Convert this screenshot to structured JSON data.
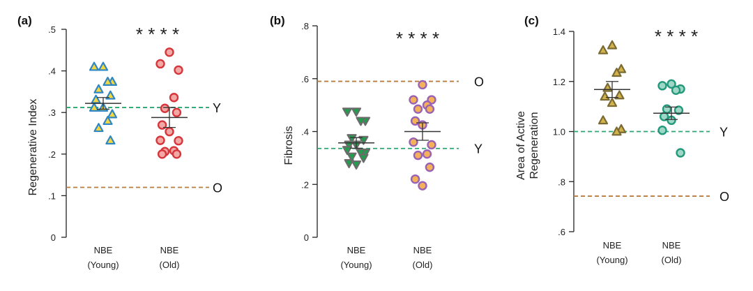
{
  "chart_data": [
    {
      "type": "scatter",
      "panel_label": "(a)",
      "ylabel": "Regenerative Index",
      "ylim": [
        0,
        0.5
      ],
      "yticks": [
        {
          "value": 0,
          "label": "0"
        },
        {
          "value": 0.1,
          "label": ".1"
        },
        {
          "value": 0.2,
          "label": ".2"
        },
        {
          "value": 0.3,
          "label": ".3"
        },
        {
          "value": 0.4,
          "label": ".4"
        },
        {
          "value": 0.5,
          "label": ".5"
        }
      ],
      "categories": [
        {
          "line1": "NBE",
          "line2": "(Young)"
        },
        {
          "line1": "NBE",
          "line2": "(Old)"
        }
      ],
      "significance": "* * * *",
      "series": [
        {
          "name": "NBE (Young)",
          "marker": "triangle-up",
          "fill": "#f4d63f",
          "stroke": "#2f86c4",
          "mean": 0.322,
          "sem": 0.014,
          "values": [
            0.41,
            0.41,
            0.374,
            0.374,
            0.356,
            0.341,
            0.331,
            0.312,
            0.312,
            0.296,
            0.28,
            0.263,
            0.233
          ]
        },
        {
          "name": "NBE (Old)",
          "marker": "circle",
          "fill": "#f2a9a5",
          "stroke": "#d6363b",
          "mean": 0.288,
          "sem": 0.024,
          "values": [
            0.445,
            0.417,
            0.402,
            0.336,
            0.31,
            0.3,
            0.27,
            0.254,
            0.233,
            0.232,
            0.208,
            0.206,
            0.2,
            0.2
          ]
        }
      ],
      "reference_lines": [
        {
          "label": "Y",
          "value": 0.312,
          "color": "#27a86e"
        },
        {
          "label": "O",
          "value": 0.12,
          "color": "#b97b3e"
        }
      ]
    },
    {
      "type": "scatter",
      "panel_label": "(b)",
      "ylabel": "Fibrosis",
      "ylim": [
        0,
        0.8
      ],
      "yticks": [
        {
          "value": 0,
          "label": "0"
        },
        {
          "value": 0.2,
          "label": ".2"
        },
        {
          "value": 0.4,
          "label": ".4"
        },
        {
          "value": 0.6,
          "label": ".6"
        },
        {
          "value": 0.8,
          "label": ".8"
        }
      ],
      "categories": [
        {
          "line1": "NBE",
          "line2": "(Young)"
        },
        {
          "line1": "NBE",
          "line2": "(Old)"
        }
      ],
      "significance": "* * * *",
      "series": [
        {
          "name": "NBE (Young)",
          "marker": "triangle-down",
          "fill": "#1f9e4b",
          "stroke": "#6b6b6b",
          "mean": 0.357,
          "sem": 0.02,
          "values": [
            0.475,
            0.475,
            0.44,
            0.44,
            0.375,
            0.368,
            0.35,
            0.35,
            0.33,
            0.32,
            0.32,
            0.305,
            0.3,
            0.28,
            0.275
          ]
        },
        {
          "name": "NBE (Old)",
          "marker": "circle",
          "fill": "#f3b15a",
          "stroke": "#9a62b5",
          "mean": 0.4,
          "sem": 0.033,
          "values": [
            0.577,
            0.52,
            0.52,
            0.5,
            0.485,
            0.485,
            0.44,
            0.425,
            0.36,
            0.35,
            0.315,
            0.31,
            0.265,
            0.22,
            0.195
          ]
        }
      ],
      "reference_lines": [
        {
          "label": "O",
          "value": 0.59,
          "color": "#b97b3e"
        },
        {
          "label": "Y",
          "value": 0.336,
          "color": "#27a86e"
        }
      ]
    },
    {
      "type": "scatter",
      "panel_label": "(c)",
      "ylabel": [
        "Area of Active",
        "Regeneration"
      ],
      "ylim": [
        0.6,
        1.4
      ],
      "yticks": [
        {
          "value": 0.6,
          "label": ".6"
        },
        {
          "value": 0.8,
          "label": ".8"
        },
        {
          "value": 1.0,
          "label": "1.0"
        },
        {
          "value": 1.2,
          "label": "1.2"
        },
        {
          "value": 1.4,
          "label": "1.4"
        }
      ],
      "categories": [
        {
          "line1": "NBE",
          "line2": "(Young)"
        },
        {
          "line1": "NBE",
          "line2": "(Old)"
        }
      ],
      "significance": "* * * *",
      "series": [
        {
          "name": "NBE (Young)",
          "marker": "triangle-up",
          "fill": "#d2b24a",
          "stroke": "#7a6a33",
          "mean": 1.168,
          "sem": 0.032,
          "values": [
            1.345,
            1.325,
            1.25,
            1.235,
            1.175,
            1.145,
            1.14,
            1.115,
            1.045,
            1.01,
            1.0
          ]
        },
        {
          "name": "NBE (Old)",
          "marker": "circle",
          "fill": "#9fd7c7",
          "stroke": "#23997c",
          "mean": 1.073,
          "sem": 0.025,
          "values": [
            1.19,
            1.183,
            1.17,
            1.165,
            1.09,
            1.085,
            1.06,
            1.045,
            1.005,
            0.915
          ]
        }
      ],
      "reference_lines": [
        {
          "label": "Y",
          "value": 1.0,
          "color": "#27a86e"
        },
        {
          "label": "O",
          "value": 0.742,
          "color": "#b97b3e"
        }
      ]
    }
  ]
}
